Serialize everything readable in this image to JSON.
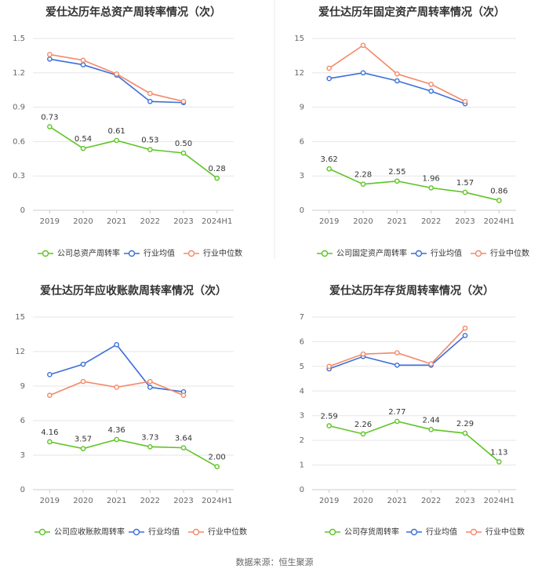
{
  "source": "数据来源：恒生聚源",
  "colors": {
    "company": "#5ec425",
    "avg": "#3b6fd8",
    "median": "#f4896a",
    "grid": "#e6e6e6",
    "axis": "#cccccc"
  },
  "chart_data": [
    {
      "type": "line",
      "title": "爱仕达历年总资产周转率情况（次）",
      "categories": [
        "2019",
        "2020",
        "2021",
        "2022",
        "2023",
        "2024H1"
      ],
      "ylim": [
        0,
        1.5
      ],
      "yticks": [
        "0",
        "0.3",
        "0.6",
        "0.9",
        "1.2",
        "1.5"
      ],
      "series": [
        {
          "name": "公司总资产周转率",
          "values": [
            0.73,
            0.54,
            0.61,
            0.53,
            0.5,
            0.28
          ],
          "labels": [
            "0.73",
            "0.54",
            "0.61",
            "0.53",
            "0.50",
            "0.28"
          ]
        },
        {
          "name": "行业均值",
          "values": [
            1.32,
            1.27,
            1.18,
            0.95,
            0.94,
            null
          ]
        },
        {
          "name": "行业中位数",
          "values": [
            1.36,
            1.31,
            1.19,
            1.02,
            0.95,
            null
          ]
        }
      ]
    },
    {
      "type": "line",
      "title": "爱仕达历年固定资产周转率情况（次）",
      "categories": [
        "2019",
        "2020",
        "2021",
        "2022",
        "2023",
        "2024H1"
      ],
      "ylim": [
        0,
        15
      ],
      "yticks": [
        "0",
        "3",
        "6",
        "9",
        "12",
        "15"
      ],
      "series": [
        {
          "name": "公司固定资产周转率",
          "values": [
            3.62,
            2.28,
            2.55,
            1.96,
            1.57,
            0.86
          ],
          "labels": [
            "3.62",
            "2.28",
            "2.55",
            "1.96",
            "1.57",
            "0.86"
          ]
        },
        {
          "name": "行业均值",
          "values": [
            11.5,
            12.0,
            11.3,
            10.4,
            9.3,
            null
          ]
        },
        {
          "name": "行业中位数",
          "values": [
            12.4,
            14.4,
            11.9,
            11.0,
            9.5,
            null
          ]
        }
      ]
    },
    {
      "type": "line",
      "title": "爱仕达历年应收账款周转率情况（次）",
      "categories": [
        "2019",
        "2020",
        "2021",
        "2022",
        "2023",
        "2024H1"
      ],
      "ylim": [
        0,
        15
      ],
      "yticks": [
        "0",
        "3",
        "6",
        "9",
        "12",
        "15"
      ],
      "series": [
        {
          "name": "公司应收账款周转率",
          "values": [
            4.16,
            3.57,
            4.36,
            3.73,
            3.64,
            2.0
          ],
          "labels": [
            "4.16",
            "3.57",
            "4.36",
            "3.73",
            "3.64",
            "2.00"
          ]
        },
        {
          "name": "行业均值",
          "values": [
            10.0,
            10.9,
            12.6,
            8.9,
            8.5,
            null
          ]
        },
        {
          "name": "行业中位数",
          "values": [
            8.2,
            9.4,
            8.9,
            9.4,
            8.2,
            null
          ]
        }
      ]
    },
    {
      "type": "line",
      "title": "爱仕达历年存货周转率情况（次）",
      "categories": [
        "2019",
        "2020",
        "2021",
        "2022",
        "2023",
        "2024H1"
      ],
      "ylim": [
        0,
        7
      ],
      "yticks": [
        "0",
        "1",
        "2",
        "3",
        "4",
        "5",
        "6",
        "7"
      ],
      "series": [
        {
          "name": "公司存货周转率",
          "values": [
            2.59,
            2.26,
            2.77,
            2.44,
            2.29,
            1.13
          ],
          "labels": [
            "2.59",
            "2.26",
            "2.77",
            "2.44",
            "2.29",
            "1.13"
          ]
        },
        {
          "name": "行业均值",
          "values": [
            4.9,
            5.4,
            5.05,
            5.05,
            6.25,
            null
          ]
        },
        {
          "name": "行业中位数",
          "values": [
            5.0,
            5.5,
            5.55,
            5.1,
            6.55,
            null
          ]
        }
      ]
    }
  ]
}
